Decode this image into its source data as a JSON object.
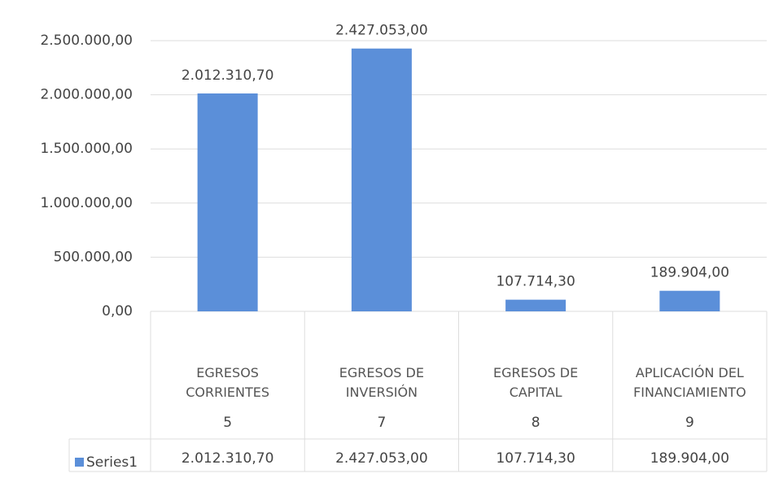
{
  "chart_data": {
    "type": "bar",
    "categories": [
      "EGRESOS CORRIENTES",
      "EGRESOS DE INVERSIÓN",
      "EGRESOS DE CAPITAL",
      "APLICACIÓN DEL FINANCIAMIENTO"
    ],
    "category_codes": [
      "5",
      "7",
      "8",
      "9"
    ],
    "series": [
      {
        "name": "Series1",
        "color": "#5b8fd9",
        "values": [
          2012310.7,
          2427053.0,
          107714.3,
          189904.0
        ],
        "value_labels": [
          "2.012.310,70",
          "2.427.053,00",
          "107.714,30",
          "189.904,00"
        ]
      }
    ],
    "ylim": [
      0,
      2500000
    ],
    "yticks": [
      {
        "value": 0,
        "label": "0,00"
      },
      {
        "value": 500000,
        "label": "500.000,00"
      },
      {
        "value": 1000000,
        "label": "1.000.000,00"
      },
      {
        "value": 1500000,
        "label": "1.500.000,00"
      },
      {
        "value": 2000000,
        "label": "2.000.000,00"
      },
      {
        "value": 2500000,
        "label": "2.500.000,00"
      }
    ],
    "grid": true,
    "data_table": true
  }
}
